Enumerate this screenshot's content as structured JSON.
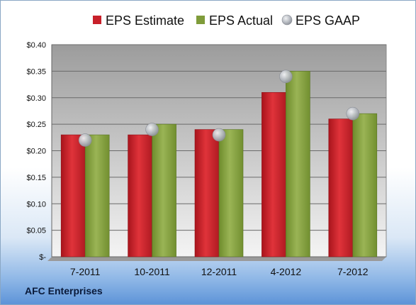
{
  "footer": {
    "company": "AFC Enterprises"
  },
  "colors": {
    "estimate": "#c8202a",
    "actual": "#7f9c3a",
    "gaap": "#b8bcc4"
  },
  "chart_data": {
    "type": "bar",
    "categories": [
      "7-2011",
      "10-2011",
      "12-2011",
      "4-2012",
      "7-2012"
    ],
    "series": [
      {
        "name": "EPS Estimate",
        "kind": "bar",
        "values": [
          0.23,
          0.23,
          0.24,
          0.31,
          0.26
        ]
      },
      {
        "name": "EPS Actual",
        "kind": "bar",
        "values": [
          0.23,
          0.25,
          0.24,
          0.35,
          0.27
        ]
      },
      {
        "name": "EPS GAAP",
        "kind": "marker",
        "values": [
          0.22,
          0.24,
          0.23,
          0.34,
          0.27
        ]
      }
    ],
    "ylim": [
      0,
      0.4
    ],
    "yticks": [
      0,
      0.05,
      0.1,
      0.15,
      0.2,
      0.25,
      0.3,
      0.35,
      0.4
    ],
    "ytick_labels": [
      "$-",
      "$0.05",
      "$0.10",
      "$0.15",
      "$0.20",
      "$0.25",
      "$0.30",
      "$0.35",
      "$0.40"
    ],
    "grid": true,
    "legend": "top"
  }
}
